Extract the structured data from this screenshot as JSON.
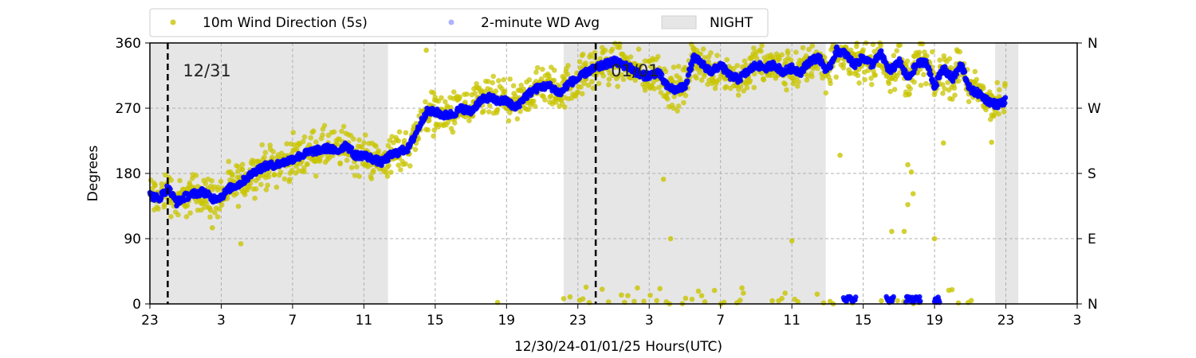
{
  "chart_data": {
    "type": "scatter",
    "title": "",
    "xlabel": "12/30/24-01/01/25  Hours(UTC)",
    "ylabel": "Degrees",
    "x_unit": "hours since 12/30/24 23:00 UTC",
    "xlim": [
      0,
      52
    ],
    "ylim": [
      0,
      360
    ],
    "x_ticks": [
      {
        "x": 0,
        "label": "23"
      },
      {
        "x": 4,
        "label": "3"
      },
      {
        "x": 8,
        "label": "7"
      },
      {
        "x": 12,
        "label": "11"
      },
      {
        "x": 16,
        "label": "15"
      },
      {
        "x": 20,
        "label": "19"
      },
      {
        "x": 24,
        "label": "23"
      },
      {
        "x": 28,
        "label": "3"
      },
      {
        "x": 32,
        "label": "7"
      },
      {
        "x": 36,
        "label": "11"
      },
      {
        "x": 40,
        "label": "15"
      },
      {
        "x": 44,
        "label": "19"
      },
      {
        "x": 48,
        "label": "23"
      },
      {
        "x": 52,
        "label": "3"
      }
    ],
    "y_ticks": [
      0,
      90,
      180,
      270,
      360
    ],
    "y2_ticks": [
      {
        "y": 0,
        "label": "N"
      },
      {
        "y": 90,
        "label": "E"
      },
      {
        "y": 180,
        "label": "S"
      },
      {
        "y": 270,
        "label": "W"
      },
      {
        "y": 360,
        "label": "N"
      }
    ],
    "grid": true,
    "legend_position": "top",
    "legend": [
      {
        "label": "10m Wind Direction (5s)",
        "kind": "marker",
        "color": "#c8c400"
      },
      {
        "label": "2-minute WD Avg",
        "kind": "marker",
        "color": "#9aa0ff"
      },
      {
        "label": "NIGHT",
        "kind": "patch",
        "color": "#e6e6e6"
      }
    ],
    "night_spans": [
      [
        0,
        13.35
      ],
      [
        23.2,
        37.9
      ],
      [
        47.4,
        48.7
      ]
    ],
    "day_markers": [
      {
        "x": 1,
        "label": "12/31"
      },
      {
        "x": 25,
        "label": "01/01"
      }
    ],
    "series": [
      {
        "name": "2-minute WD Avg",
        "color": "#0000ff",
        "x": [
          0,
          0.5,
          1,
          1.5,
          2,
          2.5,
          3,
          3.5,
          4,
          4.5,
          5,
          5.5,
          6,
          6.5,
          7,
          7.5,
          8,
          8.5,
          9,
          9.5,
          10,
          10.5,
          11,
          11.5,
          12,
          12.5,
          13,
          13.5,
          14,
          14.5,
          15,
          15.5,
          16,
          16.5,
          17,
          17.5,
          18,
          18.5,
          19,
          19.5,
          20,
          20.5,
          21,
          21.5,
          22,
          22.5,
          23,
          23.5,
          24,
          24.5,
          25,
          25.5,
          26,
          26.5,
          27,
          27.5,
          28,
          28.5,
          29,
          29.5,
          30,
          30.5,
          31,
          31.5,
          32,
          32.5,
          33,
          33.5,
          34,
          34.5,
          35,
          35.5,
          36,
          36.5,
          37,
          37.5,
          38,
          38.5,
          39,
          39.5,
          40,
          40.5,
          41,
          41.5,
          42,
          42.5,
          43,
          43.5,
          44,
          44.5,
          45,
          45.5,
          46,
          46.5,
          47,
          47.5,
          48
        ],
        "y": [
          150,
          145,
          160,
          140,
          148,
          152,
          155,
          145,
          148,
          160,
          165,
          175,
          185,
          190,
          192,
          195,
          200,
          205,
          210,
          212,
          215,
          210,
          220,
          205,
          205,
          200,
          195,
          205,
          210,
          215,
          240,
          265,
          265,
          260,
          262,
          270,
          265,
          280,
          285,
          280,
          280,
          270,
          285,
          295,
          300,
          300,
          290,
          305,
          310,
          320,
          325,
          330,
          335,
          330,
          325,
          315,
          315,
          320,
          300,
          295,
          300,
          340,
          330,
          320,
          330,
          315,
          310,
          320,
          330,
          325,
          330,
          320,
          325,
          320,
          335,
          340,
          320,
          350,
          345,
          330,
          340,
          330,
          345,
          320,
          335,
          310,
          330,
          335,
          300,
          325,
          310,
          330,
          295,
          290,
          280,
          275,
          280
        ]
      },
      {
        "name": "10m Wind Direction (5s)",
        "color": "#c8c400",
        "x": [
          0,
          0.5,
          1,
          1.5,
          2,
          2.5,
          3,
          3.5,
          4,
          4.5,
          5,
          5.5,
          6,
          6.5,
          7,
          7.5,
          8,
          8.5,
          9,
          9.5,
          10,
          10.5,
          11,
          11.5,
          12,
          12.5,
          13,
          13.5,
          14,
          14.5,
          15,
          15.5,
          16,
          16.5,
          17,
          17.5,
          18,
          18.5,
          19,
          19.5,
          20,
          20.5,
          21,
          21.5,
          22,
          22.5,
          23,
          23.5,
          24,
          24.5,
          25,
          25.5,
          26,
          26.5,
          27,
          27.5,
          28,
          28.5,
          29,
          29.5,
          30,
          30.5,
          31,
          31.5,
          32,
          32.5,
          33,
          33.5,
          34,
          34.5,
          35,
          35.5,
          36,
          36.5,
          37,
          37.5,
          38,
          38.5,
          39,
          39.5,
          40,
          40.5,
          41,
          41.5,
          42,
          42.5,
          43,
          43.5,
          44,
          44.5,
          45,
          45.5,
          46,
          46.5,
          47,
          47.5,
          48
        ],
        "spread": 25,
        "outliers": [
          {
            "x": 5.1,
            "y": 83
          },
          {
            "x": 3.5,
            "y": 105
          },
          {
            "x": 15.5,
            "y": 350
          },
          {
            "x": 19.5,
            "y": 2
          },
          {
            "x": 28.8,
            "y": 172
          },
          {
            "x": 29.2,
            "y": 90
          },
          {
            "x": 36,
            "y": 87
          },
          {
            "x": 38.7,
            "y": 205
          },
          {
            "x": 42.5,
            "y": 192
          },
          {
            "x": 42.7,
            "y": 182
          },
          {
            "x": 42.8,
            "y": 152
          },
          {
            "x": 42.5,
            "y": 137
          },
          {
            "x": 41.6,
            "y": 100
          },
          {
            "x": 42.3,
            "y": 100
          },
          {
            "x": 44,
            "y": 90
          },
          {
            "x": 44.5,
            "y": 222
          },
          {
            "x": 47.2,
            "y": 223
          },
          {
            "x": 33.2,
            "y": 22
          }
        ],
        "near_north_clusters": [
          {
            "x_start": 23.2,
            "x_end": 47.5,
            "y_max": 30
          }
        ]
      }
    ]
  }
}
